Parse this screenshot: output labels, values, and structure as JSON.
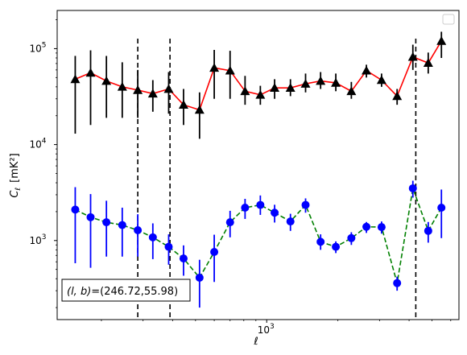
{
  "chart_data": {
    "type": "scatter",
    "xscale": "log",
    "yscale": "log",
    "xlim": [
      130,
      6500
    ],
    "ylim": [
      150,
      250000
    ],
    "xlabel": "ℓ",
    "ylabel_main": "C",
    "ylabel_sub": "ℓ",
    "ylabel_unit": "[mK²]",
    "x_ticks": [
      {
        "value": 1000,
        "label_base": "10",
        "label_exp": "3"
      }
    ],
    "y_ticks": [
      {
        "value": 1000,
        "label_base": "10",
        "label_exp": "3"
      },
      {
        "value": 10000,
        "label_base": "10",
        "label_exp": "4"
      },
      {
        "value": 100000,
        "label_base": "10",
        "label_exp": "5"
      }
    ],
    "vlines": [
      285,
      390,
      4270
    ],
    "annotation": "(l, b)=(246.72,55.98)",
    "annotation_parts": {
      "lhs": "(l, b)",
      "rhs": "=(246.72,55.98)"
    },
    "series": [
      {
        "marker": "triangle",
        "marker_color": "#000000",
        "line_color": "#ff0000",
        "line_style": "solid",
        "x": [
          155,
          180,
          210,
          245,
          285,
          330,
          385,
          445,
          520,
          600,
          700,
          810,
          940,
          1080,
          1260,
          1460,
          1690,
          1960,
          2280,
          2640,
          3060,
          3560,
          4150,
          4820,
          5480
        ],
        "y": [
          48000,
          56000,
          46000,
          40000,
          37000,
          34000,
          38000,
          26000,
          23000,
          63000,
          59000,
          36000,
          33000,
          39000,
          39000,
          43000,
          46000,
          44000,
          36000,
          59000,
          47000,
          32000,
          82000,
          71000,
          120000
        ],
        "y_low": [
          13000,
          16000,
          19000,
          19000,
          19000,
          22000,
          21000,
          16000,
          11500,
          30000,
          30000,
          26000,
          26000,
          30000,
          32000,
          35000,
          38000,
          36000,
          30000,
          50000,
          40000,
          26000,
          60000,
          55000,
          80000
        ],
        "y_high": [
          84000,
          96000,
          84000,
          72000,
          60000,
          47000,
          57000,
          38000,
          35000,
          97000,
          95000,
          52000,
          41000,
          48000,
          48000,
          55000,
          57000,
          55000,
          45000,
          68000,
          55000,
          38000,
          110000,
          91000,
          150000
        ]
      },
      {
        "marker": "circle",
        "marker_color": "#0000ff",
        "line_color": "#008000",
        "line_style": "dashed",
        "x": [
          155,
          180,
          210,
          245,
          285,
          330,
          385,
          445,
          520,
          600,
          700,
          810,
          940,
          1080,
          1260,
          1460,
          1690,
          1960,
          2280,
          2640,
          3060,
          3560,
          4150,
          4820,
          5480
        ],
        "y": [
          2100,
          1750,
          1550,
          1450,
          1280,
          1080,
          860,
          650,
          410,
          760,
          1550,
          2200,
          2350,
          1950,
          1580,
          2350,
          970,
          860,
          1060,
          1390,
          1380,
          360,
          3500,
          1260,
          2200
        ],
        "y_low": [
          580,
          520,
          680,
          680,
          680,
          640,
          560,
          430,
          200,
          370,
          1080,
          1680,
          1850,
          1540,
          1260,
          1950,
          800,
          740,
          900,
          1200,
          1180,
          300,
          2800,
          950,
          1060
        ],
        "y_high": [
          3600,
          3050,
          2600,
          2200,
          1880,
          1510,
          1160,
          890,
          630,
          1150,
          2040,
          2720,
          2950,
          2360,
          1900,
          2750,
          1160,
          980,
          1220,
          1560,
          1580,
          420,
          4200,
          1560,
          3400
        ]
      }
    ]
  }
}
